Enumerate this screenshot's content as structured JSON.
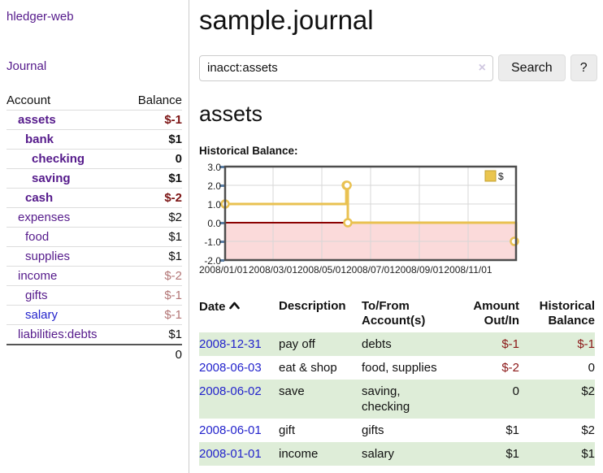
{
  "app": {
    "brand": "hledger-web",
    "nav_journal": "Journal"
  },
  "sidebar": {
    "header": {
      "account": "Account",
      "balance": "Balance"
    },
    "accounts": [
      {
        "name": "assets",
        "balance": "$-1"
      },
      {
        "name": "bank",
        "balance": "$1"
      },
      {
        "name": "checking",
        "balance": "0"
      },
      {
        "name": "saving",
        "balance": "$1"
      },
      {
        "name": "cash",
        "balance": "$-2"
      },
      {
        "name": "expenses",
        "balance": "$2"
      },
      {
        "name": "food",
        "balance": "$1"
      },
      {
        "name": "supplies",
        "balance": "$1"
      },
      {
        "name": "income",
        "balance": "$-2"
      },
      {
        "name": "gifts",
        "balance": "$-1"
      },
      {
        "name": "salary",
        "balance": "$-1"
      },
      {
        "name": "liabilities:debts",
        "balance": "$1"
      }
    ],
    "total": "0"
  },
  "header": {
    "title": "sample.journal"
  },
  "search": {
    "value": "inacct:assets",
    "clear_icon": "×",
    "button_label": "Search",
    "help_label": "?"
  },
  "register": {
    "heading": "assets",
    "chart_label": "Historical Balance:"
  },
  "chart_data": {
    "type": "line",
    "step": true,
    "title": "Historical Balance",
    "series": [
      {
        "name": "$",
        "points": [
          [
            "2008-01-01",
            1
          ],
          [
            "2008-06-01",
            2
          ],
          [
            "2008-06-02",
            2
          ],
          [
            "2008-06-03",
            0
          ],
          [
            "2008-12-31",
            -1
          ]
        ]
      }
    ],
    "x_range": [
      "2008-01-01",
      "2008-12-31"
    ],
    "y_range": [
      -2,
      3
    ],
    "y_tick_labels": [
      "3.0",
      "2.0",
      "1.0",
      "0.0",
      "-1.0",
      "-2.0"
    ],
    "x_tick_labels": [
      "2008/01/01",
      "2008/03/01",
      "2008/05/01",
      "2008/07/01",
      "2008/09/01",
      "2008/11/01"
    ],
    "legend": {
      "label": "$",
      "position": "top-right"
    },
    "colors": {
      "line": "#e9c151",
      "negative_region": "#fbdada",
      "zero_line": "#8b0000",
      "border": "#4d4d4d"
    }
  },
  "table": {
    "headers": {
      "date": "Date",
      "description": "Description",
      "tofrom_line1": "To/From",
      "tofrom_line2": "Account(s)",
      "amount_line1": "Amount",
      "amount_line2": "Out/In",
      "balance_line1": "Historical",
      "balance_line2": "Balance"
    },
    "rows": [
      {
        "date": "2008-12-31",
        "description": "pay off",
        "accounts": "debts",
        "amount": "$-1",
        "balance": "$-1"
      },
      {
        "date": "2008-06-03",
        "description": "eat & shop",
        "accounts": "food, supplies",
        "amount": "$-2",
        "balance": "0"
      },
      {
        "date": "2008-06-02",
        "description": "save",
        "accounts": "saving, checking",
        "amount": "0",
        "balance": "$2"
      },
      {
        "date": "2008-06-01",
        "description": "gift",
        "accounts": "gifts",
        "amount": "$1",
        "balance": "$2"
      },
      {
        "date": "2008-01-01",
        "description": "income",
        "accounts": "salary",
        "amount": "$1",
        "balance": "$1"
      }
    ]
  }
}
